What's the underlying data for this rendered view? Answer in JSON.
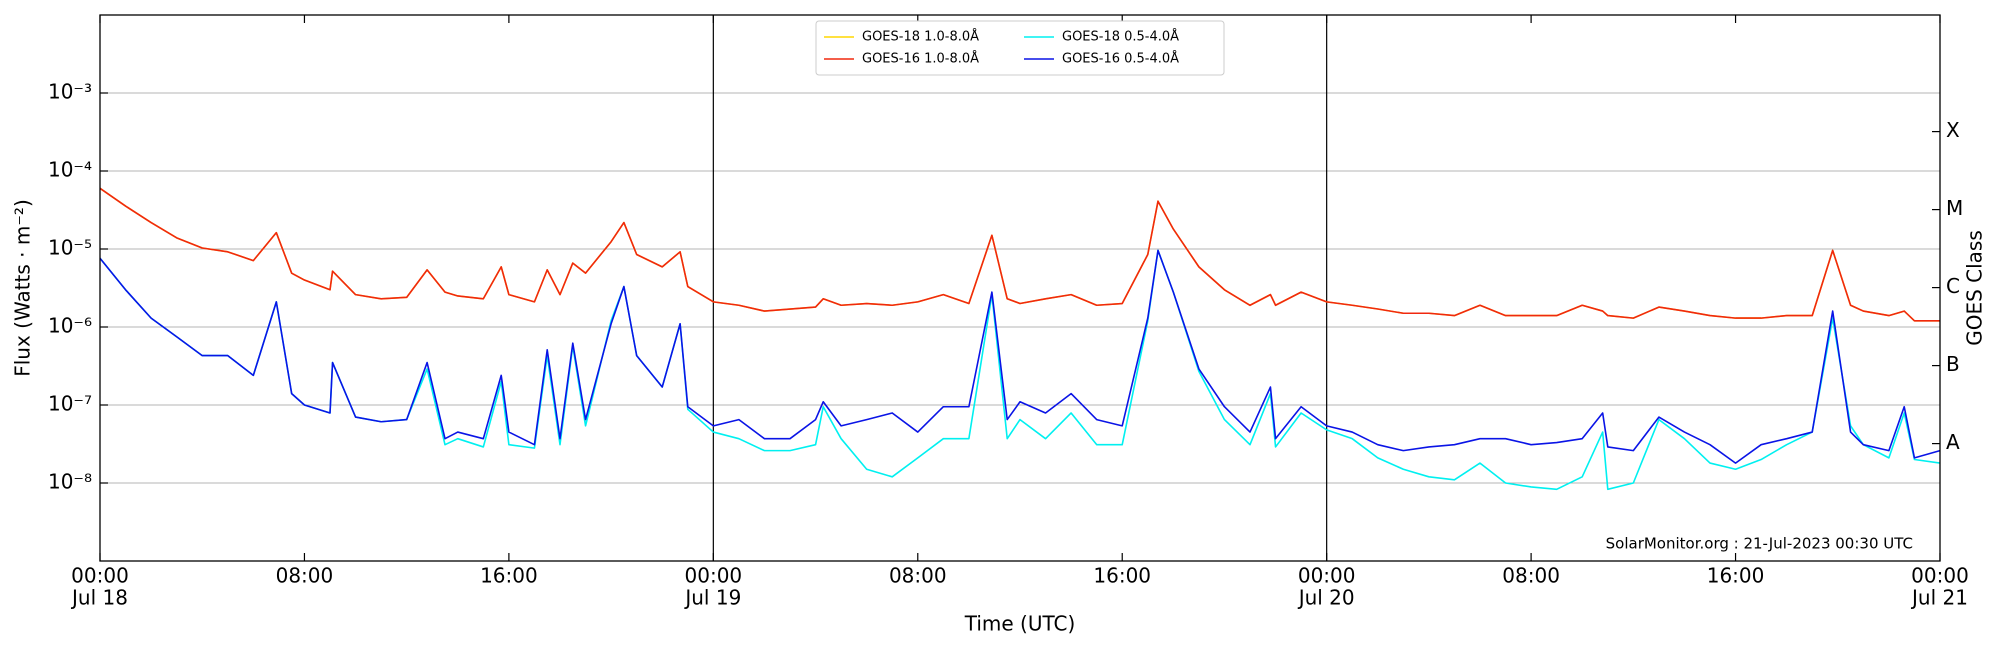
{
  "chart_data": {
    "type": "line",
    "xlabel": "Time (UTC)",
    "ylabel": "Flux (Watts · m⁻²)",
    "y2label": "GOES Class",
    "annotation": "SolarMonitor.org : 21-Jul-2023 00:30 UTC",
    "log_y": true,
    "grid": "y",
    "legend": "upper center",
    "legend_columns": 2,
    "xlim": [
      0,
      72
    ],
    "ylim": [
      1e-09,
      0.01
    ],
    "xticks": [
      {
        "value": 0,
        "label": "00:00"
      },
      {
        "value": 8,
        "label": "08:00"
      },
      {
        "value": 16,
        "label": "16:00"
      },
      {
        "value": 24,
        "label": "00:00"
      },
      {
        "value": 32,
        "label": "08:00"
      },
      {
        "value": 40,
        "label": "16:00"
      },
      {
        "value": 48,
        "label": "00:00"
      },
      {
        "value": 56,
        "label": "08:00"
      },
      {
        "value": 64,
        "label": "16:00"
      },
      {
        "value": 72,
        "label": "00:00"
      }
    ],
    "xdates": [
      {
        "value": 0,
        "label": "Jul 18"
      },
      {
        "value": 24,
        "label": "Jul 19"
      },
      {
        "value": 48,
        "label": "Jul 20"
      },
      {
        "value": 72,
        "label": "Jul 21"
      }
    ],
    "vlines": [
      24,
      48
    ],
    "yticks": [
      {
        "value": 1e-08,
        "label": "10⁻⁸"
      },
      {
        "value": 1e-07,
        "label": "10⁻⁷"
      },
      {
        "value": 1e-06,
        "label": "10⁻⁶"
      },
      {
        "value": 1e-05,
        "label": "10⁻⁵"
      },
      {
        "value": 0.0001,
        "label": "10⁻⁴"
      },
      {
        "value": 0.001,
        "label": "10⁻³"
      }
    ],
    "y2lim": [
      1e-09,
      0.01
    ],
    "y2ticks": [
      {
        "value": 3.2e-08,
        "label": "A"
      },
      {
        "value": 3.2e-07,
        "label": "B"
      },
      {
        "value": 3.2e-06,
        "label": "C"
      },
      {
        "value": 3.2e-05,
        "label": "M"
      },
      {
        "value": 0.00032,
        "label": "X"
      }
    ],
    "x": [
      0,
      1,
      2,
      3,
      4,
      5,
      6,
      6.9,
      7.5,
      8,
      9,
      9.1,
      10,
      11,
      12,
      12.8,
      13.5,
      14,
      15,
      15.7,
      16,
      17,
      17.5,
      18,
      18.5,
      19,
      20,
      20.5,
      21,
      22,
      22.7,
      23,
      24,
      25,
      26,
      27,
      28,
      28.3,
      29,
      30,
      31,
      32,
      33,
      34,
      34.9,
      35.5,
      36,
      37,
      38,
      39,
      40,
      41,
      41.4,
      42,
      43,
      44,
      45,
      45.8,
      46,
      47,
      48,
      49,
      50,
      51,
      52,
      53,
      54,
      55,
      56,
      57,
      58,
      58.8,
      59,
      60,
      61,
      62,
      63,
      64,
      65,
      66,
      67,
      67.8,
      68.5,
      69,
      70,
      70.6,
      71,
      72
    ],
    "series": [
      {
        "name": "GOES-18 1.0-8.0Å",
        "color": "#ffd700",
        "values": [
          6e-05,
          3.55e-05,
          2.18e-05,
          1.39e-05,
          1.03e-05,
          9.2e-06,
          7.1e-06,
          1.62e-05,
          4.9e-06,
          4e-06,
          3e-06,
          5.2e-06,
          2.6e-06,
          2.3e-06,
          2.4e-06,
          5.4e-06,
          2.8e-06,
          2.5e-06,
          2.3e-06,
          5.9e-06,
          2.6e-06,
          2.1e-06,
          5.4e-06,
          2.6e-06,
          6.6e-06,
          4.9e-06,
          1.24e-05,
          2.18e-05,
          8.5e-06,
          5.9e-06,
          9.2e-06,
          3.3e-06,
          2.1e-06,
          1.9e-06,
          1.6e-06,
          1.7e-06,
          1.8e-06,
          2.3e-06,
          1.9e-06,
          2e-06,
          1.9e-06,
          2.1e-06,
          2.6e-06,
          2e-06,
          1.5e-05,
          2.3e-06,
          2e-06,
          2.3e-06,
          2.6e-06,
          1.9e-06,
          2e-06,
          8.5e-06,
          4.1e-05,
          1.8e-05,
          5.9e-06,
          3e-06,
          1.9e-06,
          2.6e-06,
          1.9e-06,
          2.8e-06,
          2.1e-06,
          1.9e-06,
          1.7e-06,
          1.5e-06,
          1.5e-06,
          1.4e-06,
          1.9e-06,
          1.4e-06,
          1.4e-06,
          1.4e-06,
          1.9e-06,
          1.6e-06,
          1.4e-06,
          1.3e-06,
          1.8e-06,
          1.6e-06,
          1.4e-06,
          1.3e-06,
          1.3e-06,
          1.4e-06,
          1.4e-06,
          9.6e-06,
          1.9e-06,
          1.6e-06,
          1.4e-06,
          1.6e-06,
          1.2e-06,
          1.2e-06
        ]
      },
      {
        "name": "GOES-16 1.0-8.0Å",
        "color": "#f0280f",
        "values": [
          6e-05,
          3.55e-05,
          2.18e-05,
          1.39e-05,
          1.03e-05,
          9.2e-06,
          7.1e-06,
          1.62e-05,
          4.9e-06,
          4e-06,
          3e-06,
          5.2e-06,
          2.6e-06,
          2.3e-06,
          2.4e-06,
          5.4e-06,
          2.8e-06,
          2.5e-06,
          2.3e-06,
          5.9e-06,
          2.6e-06,
          2.1e-06,
          5.4e-06,
          2.6e-06,
          6.6e-06,
          4.9e-06,
          1.24e-05,
          2.18e-05,
          8.5e-06,
          5.9e-06,
          9.2e-06,
          3.3e-06,
          2.1e-06,
          1.9e-06,
          1.6e-06,
          1.7e-06,
          1.8e-06,
          2.3e-06,
          1.9e-06,
          2e-06,
          1.9e-06,
          2.1e-06,
          2.6e-06,
          2e-06,
          1.5e-05,
          2.3e-06,
          2e-06,
          2.3e-06,
          2.6e-06,
          1.9e-06,
          2e-06,
          8.5e-06,
          4.1e-05,
          1.8e-05,
          5.9e-06,
          3e-06,
          1.9e-06,
          2.6e-06,
          1.9e-06,
          2.8e-06,
          2.1e-06,
          1.9e-06,
          1.7e-06,
          1.5e-06,
          1.5e-06,
          1.4e-06,
          1.9e-06,
          1.4e-06,
          1.4e-06,
          1.4e-06,
          1.9e-06,
          1.6e-06,
          1.4e-06,
          1.3e-06,
          1.8e-06,
          1.6e-06,
          1.4e-06,
          1.3e-06,
          1.3e-06,
          1.4e-06,
          1.4e-06,
          9.6e-06,
          1.9e-06,
          1.6e-06,
          1.4e-06,
          1.6e-06,
          1.2e-06,
          1.2e-06
        ]
      },
      {
        "name": "GOES-18 0.5-4.0Å",
        "color": "#00f0f0",
        "values": [
          7.6e-06,
          3e-06,
          1.3e-06,
          7.5e-07,
          4.3e-07,
          4.3e-07,
          2.4e-07,
          2.1e-06,
          1.4e-07,
          1e-07,
          7.9e-08,
          3.5e-07,
          7e-08,
          6.1e-08,
          6.5e-08,
          2.9e-07,
          3.1e-08,
          3.7e-08,
          2.9e-08,
          2e-07,
          3.1e-08,
          2.8e-08,
          4.3e-07,
          3.1e-08,
          5.7e-07,
          5.4e-08,
          1.2e-06,
          3.3e-06,
          4.3e-07,
          1.7e-07,
          1.1e-06,
          8.8e-08,
          4.5e-08,
          3.7e-08,
          2.6e-08,
          2.6e-08,
          3.1e-08,
          9.5e-08,
          3.7e-08,
          1.5e-08,
          1.2e-08,
          2.1e-08,
          3.7e-08,
          3.7e-08,
          2.6e-06,
          3.7e-08,
          6.5e-08,
          3.7e-08,
          7.9e-08,
          3.1e-08,
          3.1e-08,
          1.2e-06,
          9.6e-06,
          2.8e-06,
          2.7e-07,
          6.5e-08,
          3.1e-08,
          1.4e-07,
          2.9e-08,
          7.9e-08,
          4.8e-08,
          3.7e-08,
          2.1e-08,
          1.5e-08,
          1.2e-08,
          1.1e-08,
          1.8e-08,
          1e-08,
          8.9e-09,
          8.3e-09,
          1.2e-08,
          4.5e-08,
          8.3e-09,
          1e-08,
          6.5e-08,
          3.7e-08,
          1.8e-08,
          1.5e-08,
          2e-08,
          3.1e-08,
          4.5e-08,
          1.3e-06,
          5.4e-08,
          3.1e-08,
          2.1e-08,
          7.9e-08,
          2e-08,
          1.8e-08
        ]
      },
      {
        "name": "GOES-16 0.5-4.0Å",
        "color": "#0a14e6",
        "values": [
          7.6e-06,
          3e-06,
          1.3e-06,
          7.5e-07,
          4.3e-07,
          4.3e-07,
          2.4e-07,
          2.1e-06,
          1.4e-07,
          1e-07,
          7.9e-08,
          3.5e-07,
          7e-08,
          6.1e-08,
          6.5e-08,
          3.5e-07,
          3.7e-08,
          4.5e-08,
          3.7e-08,
          2.4e-07,
          4.5e-08,
          3.1e-08,
          5.1e-07,
          3.7e-08,
          6.2e-07,
          6.5e-08,
          1.1e-06,
          3.3e-06,
          4.3e-07,
          1.7e-07,
          1.1e-06,
          9.5e-08,
          5.4e-08,
          6.5e-08,
          3.7e-08,
          3.7e-08,
          6.5e-08,
          1.1e-07,
          5.4e-08,
          6.5e-08,
          7.9e-08,
          4.5e-08,
          9.5e-08,
          9.5e-08,
          2.8e-06,
          6.5e-08,
          1.1e-07,
          7.9e-08,
          1.4e-07,
          6.5e-08,
          5.4e-08,
          1.3e-06,
          9.6e-06,
          2.8e-06,
          2.9e-07,
          9.5e-08,
          4.5e-08,
          1.7e-07,
          3.7e-08,
          9.5e-08,
          5.4e-08,
          4.5e-08,
          3.1e-08,
          2.6e-08,
          2.9e-08,
          3.1e-08,
          3.7e-08,
          3.7e-08,
          3.1e-08,
          3.3e-08,
          3.7e-08,
          7.9e-08,
          2.9e-08,
          2.6e-08,
          7e-08,
          4.5e-08,
          3.1e-08,
          1.8e-08,
          3.1e-08,
          3.7e-08,
          4.5e-08,
          1.6e-06,
          4.5e-08,
          3.1e-08,
          2.6e-08,
          9.5e-08,
          2.1e-08,
          2.6e-08
        ]
      }
    ]
  }
}
